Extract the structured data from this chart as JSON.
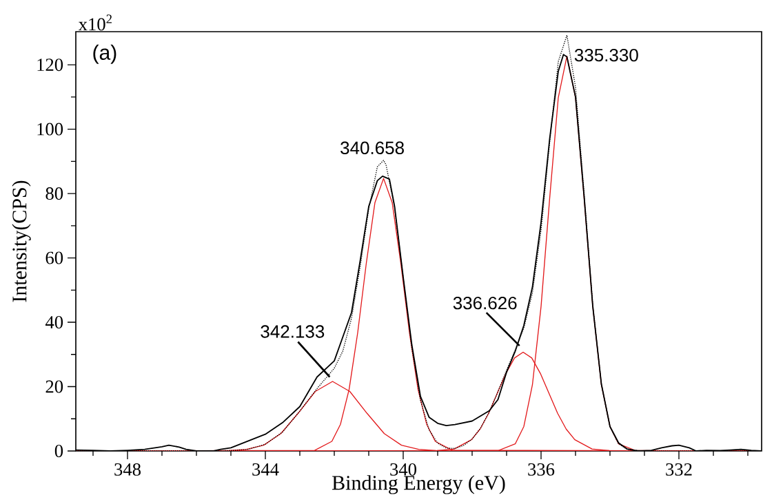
{
  "chart_data": {
    "type": "line",
    "xlabel": "Binding Energy (eV)",
    "ylabel": "Intensity(CPS)",
    "annotations": [
      "(a)",
      "x10$^{2}$",
      {
        "text": "340.658",
        "x": 340.658,
        "y": 89.9
      },
      {
        "text": "335.330",
        "x": 335.33,
        "y": 123.0
      },
      {
        "text": "342.133",
        "x": 342.133,
        "y": 23.0
      },
      {
        "text": "336.626",
        "x": 336.626,
        "y": 32.7
      }
    ],
    "xlim": [
      349.5,
      329.6
    ],
    "xticks": [
      {
        "value": 349,
        "label": null
      },
      348,
      {
        "value": 347,
        "label": null
      },
      {
        "value": 346,
        "label": null
      },
      {
        "value": 345,
        "label": null
      },
      344,
      {
        "value": 343,
        "label": null
      },
      {
        "value": 342,
        "label": null
      },
      {
        "value": 341,
        "label": null
      },
      340,
      {
        "value": 339,
        "label": null
      },
      {
        "value": 338,
        "label": null
      },
      {
        "value": 337,
        "label": null
      },
      336,
      {
        "value": 335,
        "label": null
      },
      {
        "value": 334,
        "label": null
      },
      {
        "value": 333,
        "label": null
      },
      332,
      {
        "value": 331,
        "label": null
      },
      {
        "value": 330,
        "label": null
      }
    ],
    "ylim": [
      0,
      130.3
    ],
    "yticks": [
      0,
      {
        "value": 10,
        "label": null
      },
      20,
      {
        "value": 30,
        "label": null
      },
      40,
      {
        "value": 50,
        "label": null
      },
      60,
      {
        "value": 70,
        "label": null
      },
      80,
      {
        "value": 90,
        "label": null
      },
      100,
      {
        "value": 110,
        "label": null
      },
      120
    ],
    "series": [
      {
        "color": "#e31a1c",
        "line_style": "solid",
        "x": [
          349.5,
          345.05,
          344.55,
          344.05,
          343.55,
          343.05,
          342.55,
          342.05,
          341.55,
          341.05,
          340.55,
          340.05,
          339.55,
          339.05,
          329.6
        ],
        "values": [
          0,
          0.1,
          0.5,
          1.8,
          5.4,
          11.7,
          18.5,
          21.6,
          18.5,
          11.7,
          5.4,
          1.8,
          0.5,
          0.1,
          0
        ]
      },
      {
        "color": "#e31a1c",
        "line_style": "solid",
        "x": [
          349.5,
          342.57,
          342.07,
          341.82,
          341.57,
          341.32,
          341.07,
          340.82,
          340.57,
          340.32,
          340.07,
          339.82,
          339.57,
          339.32,
          339.07,
          338.57,
          329.6
        ],
        "values": [
          0,
          0.2,
          3.0,
          8.3,
          19.1,
          36.8,
          58.4,
          77.2,
          84.7,
          77.2,
          58.4,
          36.8,
          19.1,
          8.3,
          3.0,
          0.2,
          0
        ]
      },
      {
        "color": "#e31a1c",
        "line_style": "solid",
        "x": [
          349.5,
          339.02,
          338.52,
          338.02,
          337.77,
          337.52,
          337.27,
          337.02,
          336.77,
          336.52,
          336.27,
          336.02,
          335.77,
          335.52,
          335.27,
          335.02,
          334.52,
          334.02,
          329.6
        ],
        "values": [
          0,
          0.1,
          0.6,
          3.5,
          6.8,
          11.7,
          17.9,
          24.1,
          28.9,
          30.7,
          28.9,
          24.1,
          17.9,
          11.7,
          6.8,
          3.5,
          0.6,
          0.1,
          0
        ]
      },
      {
        "color": "#e31a1c",
        "line_style": "solid",
        "x": [
          349.5,
          337.25,
          336.75,
          336.5,
          336.25,
          336,
          335.75,
          335.5,
          335.25,
          335,
          334.75,
          334.5,
          334.25,
          334,
          333.75,
          333.25,
          329.6
        ],
        "values": [
          0,
          0.1,
          2.2,
          7.6,
          20.6,
          44.9,
          78.5,
          109.8,
          122.7,
          109.8,
          78.5,
          44.9,
          20.6,
          7.6,
          2.2,
          0.1,
          0
        ]
      },
      {
        "color": "#000000",
        "line_style": "dotted",
        "x": [
          349.5,
          345,
          344.5,
          344,
          343.5,
          343,
          342.5,
          342,
          341.75,
          341.5,
          341.25,
          341,
          340.75,
          340.57,
          340.5,
          340.25,
          340,
          339.75,
          339.5,
          339.25,
          339,
          338.75,
          338.5,
          338.25,
          338,
          337.75,
          337.5,
          337.25,
          337,
          336.75,
          336.5,
          336.25,
          336,
          335.75,
          335.5,
          335.25,
          335,
          334.75,
          334.5,
          334.25,
          334,
          333.75,
          333.5,
          333,
          329.6
        ],
        "values": [
          0,
          0.1,
          0.5,
          2.1,
          5.9,
          12.4,
          19.4,
          25.7,
          31.1,
          41.3,
          57.2,
          75.2,
          88.3,
          90.3,
          89.0,
          75.6,
          53.8,
          32.0,
          15.8,
          6.6,
          2.4,
          0.9,
          0.8,
          1.7,
          3.7,
          7.2,
          12.2,
          18.5,
          25.1,
          31.4,
          38.2,
          49.2,
          68.6,
          95.9,
          121.0,
          129.2,
          113.0,
          80.0,
          45.5,
          20.8,
          7.6,
          2.2,
          0.5,
          0,
          0
        ]
      },
      {
        "color": "#000000",
        "line_style": "solid",
        "x": [
          349.5,
          349,
          348.5,
          348,
          347.5,
          347,
          346.8,
          346.5,
          346.3,
          346,
          345.5,
          345.3,
          345,
          344.5,
          344,
          343.5,
          343,
          342.5,
          342,
          341.5,
          341.25,
          341,
          340.75,
          340.6,
          340.4,
          340.25,
          340,
          339.75,
          339.5,
          339.25,
          339,
          338.75,
          338.5,
          338,
          337.5,
          337.25,
          337,
          336.75,
          336.5,
          336.25,
          336,
          335.75,
          335.5,
          335.35,
          335.25,
          335,
          334.75,
          334.5,
          334.25,
          334,
          333.75,
          333.5,
          333.2,
          332.8,
          332.5,
          332.2,
          332,
          331.7,
          331.5,
          331.2,
          330.8,
          330.5,
          330.2,
          329.9,
          329.6
        ],
        "values": [
          0.3,
          0.2,
          0,
          0.2,
          0.5,
          1.3,
          1.8,
          1.2,
          0.5,
          0,
          0,
          0.5,
          1.0,
          3.1,
          5.2,
          8.8,
          13.8,
          23.0,
          28.0,
          43.0,
          59.0,
          76.0,
          84.0,
          85.4,
          84.5,
          76.0,
          54.0,
          33.0,
          17.0,
          10.5,
          8.6,
          7.9,
          8.2,
          9.3,
          12.5,
          16.0,
          24.5,
          31.0,
          39.0,
          51.0,
          71.0,
          97.0,
          118.0,
          123.2,
          122.5,
          110.0,
          79.0,
          45.0,
          20.8,
          7.6,
          2.5,
          0.6,
          0,
          0.2,
          1.0,
          1.6,
          1.8,
          1.0,
          0,
          0.2,
          0.1,
          0.3,
          0.5,
          0.2,
          0
        ]
      }
    ]
  }
}
